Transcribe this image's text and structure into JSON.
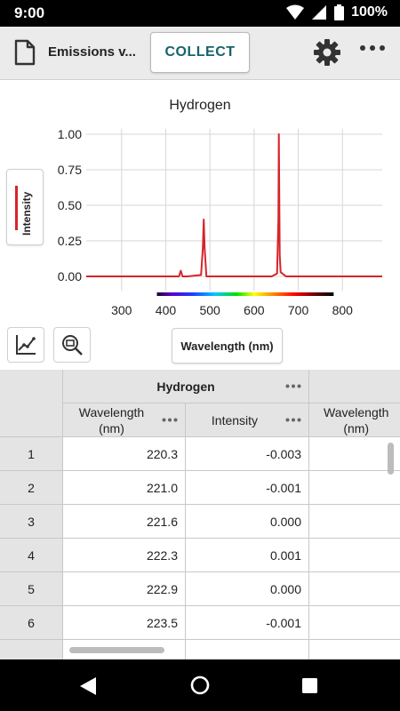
{
  "status_bar": {
    "time": "9:00",
    "battery": "100%"
  },
  "app_bar": {
    "file_title": "Emissions v...",
    "collect_label": "COLLECT"
  },
  "graph": {
    "title": "Hydrogen",
    "y_axis_label": "Intensity",
    "x_axis_button_label": "Wavelength (nm)",
    "series_color": "#d6252a"
  },
  "chart_data": {
    "type": "line",
    "title": "Hydrogen",
    "xlabel": "Wavelength (nm)",
    "ylabel": "Intensity",
    "xlim": [
      220,
      890
    ],
    "ylim": [
      -0.1,
      1.1
    ],
    "x_ticks": [
      "300",
      "400",
      "500",
      "600",
      "700",
      "800"
    ],
    "y_ticks": [
      "0.00",
      "0.25",
      "0.50",
      "0.75",
      "1.00"
    ],
    "grid": true,
    "visible_spectrum_bar": [
      380,
      780
    ],
    "series": [
      {
        "name": "Hydrogen",
        "color": "#d6252a",
        "x": [
          220,
          420,
          430,
          434,
          438,
          450,
          480,
          484,
          486,
          488,
          492,
          520,
          640,
          652,
          655,
          656,
          657,
          658,
          660,
          672,
          700,
          890
        ],
        "y": [
          0.0,
          0.0,
          0.0,
          0.04,
          0.0,
          0.0,
          0.01,
          0.2,
          0.4,
          0.2,
          0.0,
          0.0,
          0.0,
          0.02,
          0.4,
          1.0,
          0.55,
          0.15,
          0.03,
          0.0,
          0.0,
          0.0
        ]
      }
    ]
  },
  "table": {
    "group_title": "Hydrogen",
    "columns": [
      {
        "label": "Wavelength\n(nm)"
      },
      {
        "label": "Intensity"
      },
      {
        "label": "Wavelength\n(nm)"
      }
    ],
    "rows": [
      {
        "num": "1",
        "wavelength": "220.3",
        "intensity": "-0.003"
      },
      {
        "num": "2",
        "wavelength": "221.0",
        "intensity": "-0.001"
      },
      {
        "num": "3",
        "wavelength": "221.6",
        "intensity": "0.000"
      },
      {
        "num": "4",
        "wavelength": "222.3",
        "intensity": "0.001"
      },
      {
        "num": "5",
        "wavelength": "222.9",
        "intensity": "0.000"
      },
      {
        "num": "6",
        "wavelength": "223.5",
        "intensity": "-0.001"
      }
    ]
  }
}
